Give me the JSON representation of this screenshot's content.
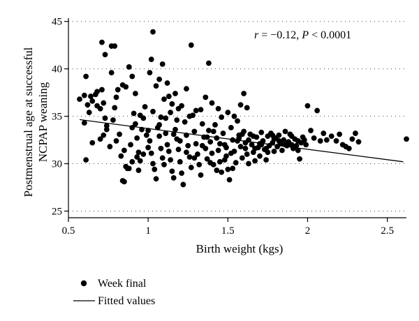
{
  "chart_data": {
    "type": "scatter",
    "title": "",
    "xlabel": "Birth weight (kgs)",
    "ylabel": [
      "Postmenstrual age at successful",
      "NCPAP weaning"
    ],
    "xlim": [
      0.5,
      2.62
    ],
    "ylim": [
      24.3,
      45.2
    ],
    "xticks": [
      0.5,
      1,
      1.5,
      2,
      2.5
    ],
    "xtick_labels": [
      "0.5",
      "1",
      "1.5",
      "2",
      "2.5"
    ],
    "yticks": [
      25,
      30,
      35,
      40,
      45
    ],
    "ytick_labels": [
      "25",
      "30",
      "35",
      "40",
      "45"
    ],
    "grid": "horizontal dotted",
    "annotation": {
      "r_label": "r",
      "r_value": " = −0.12, ",
      "p_label": "P",
      "p_value": " < 0.0001"
    },
    "legend": {
      "position": "bottom-left",
      "entries": [
        "Week final",
        "Fitted values"
      ]
    },
    "series": [
      {
        "name": "Week final",
        "kind": "points",
        "color": "#000000",
        "points": [
          [
            0.57,
            36.8
          ],
          [
            0.6,
            37.2
          ],
          [
            0.61,
            39.2
          ],
          [
            0.62,
            36.2
          ],
          [
            0.64,
            37.1
          ],
          [
            0.65,
            36.6
          ],
          [
            0.67,
            37.3
          ],
          [
            0.68,
            37.6
          ],
          [
            0.71,
            37.8
          ],
          [
            0.6,
            34.3
          ],
          [
            0.61,
            30.4
          ],
          [
            0.65,
            32.2
          ],
          [
            0.63,
            35.4
          ],
          [
            0.68,
            36.1
          ],
          [
            0.7,
            35.8
          ],
          [
            0.72,
            36.4
          ],
          [
            0.73,
            34.8
          ],
          [
            0.74,
            34.0
          ],
          [
            0.71,
            42.8
          ],
          [
            0.73,
            41.5
          ],
          [
            0.77,
            42.4
          ],
          [
            0.79,
            42.4
          ],
          [
            0.77,
            39.6
          ],
          [
            0.8,
            37.0
          ],
          [
            0.81,
            37.8
          ],
          [
            0.84,
            38.3
          ],
          [
            0.86,
            38.1
          ],
          [
            0.88,
            40.2
          ],
          [
            0.9,
            39.2
          ],
          [
            0.92,
            37.4
          ],
          [
            0.7,
            32.6
          ],
          [
            0.72,
            33.0
          ],
          [
            0.74,
            33.6
          ],
          [
            0.76,
            31.8
          ],
          [
            0.78,
            34.6
          ],
          [
            0.79,
            35.9
          ],
          [
            0.8,
            32.4
          ],
          [
            0.82,
            33.1
          ],
          [
            0.83,
            30.8
          ],
          [
            0.85,
            31.4
          ],
          [
            0.86,
            29.7
          ],
          [
            0.87,
            29.5
          ],
          [
            0.89,
            32.0
          ],
          [
            0.9,
            33.8
          ],
          [
            0.91,
            35.3
          ],
          [
            0.92,
            34.2
          ],
          [
            0.93,
            32.7
          ],
          [
            0.94,
            31.2
          ],
          [
            0.95,
            30.3
          ],
          [
            0.96,
            33.6
          ],
          [
            0.97,
            34.8
          ],
          [
            0.98,
            36.0
          ],
          [
            0.99,
            33.0
          ],
          [
            1.0,
            31.7
          ],
          [
            0.84,
            28.2
          ],
          [
            0.85,
            28.1
          ],
          [
            0.88,
            29.5
          ],
          [
            0.9,
            30.2
          ],
          [
            0.93,
            30.7
          ],
          [
            0.94,
            29.3
          ],
          [
            1.01,
            39.6
          ],
          [
            1.02,
            41.0
          ],
          [
            1.03,
            43.9
          ],
          [
            1.05,
            38.2
          ],
          [
            1.07,
            38.9
          ],
          [
            1.09,
            40.5
          ],
          [
            1.1,
            36.8
          ],
          [
            1.12,
            38.5
          ],
          [
            1.13,
            37.1
          ],
          [
            1.15,
            36.3
          ],
          [
            1.17,
            37.4
          ],
          [
            1.19,
            35.8
          ],
          [
            1.0,
            33.5
          ],
          [
            1.01,
            32.4
          ],
          [
            1.02,
            31.1
          ],
          [
            1.03,
            30.0
          ],
          [
            1.04,
            29.4
          ],
          [
            1.05,
            28.4
          ],
          [
            1.06,
            33.8
          ],
          [
            1.07,
            32.9
          ],
          [
            1.08,
            31.6
          ],
          [
            1.09,
            30.6
          ],
          [
            1.1,
            29.9
          ],
          [
            1.11,
            33.2
          ],
          [
            1.12,
            32.0
          ],
          [
            1.13,
            31.3
          ],
          [
            1.14,
            30.4
          ],
          [
            1.15,
            29.2
          ],
          [
            1.16,
            28.5
          ],
          [
            1.17,
            33.6
          ],
          [
            1.18,
            32.6
          ],
          [
            1.19,
            31.5
          ],
          [
            1.2,
            30.2
          ],
          [
            1.21,
            29.0
          ],
          [
            1.22,
            27.8
          ],
          [
            1.23,
            34.4
          ],
          [
            1.24,
            33.0
          ],
          [
            1.25,
            31.9
          ],
          [
            1.26,
            30.7
          ],
          [
            1.27,
            29.6
          ],
          [
            1.28,
            35.1
          ],
          [
            1.29,
            33.4
          ],
          [
            1.3,
            32.1
          ],
          [
            1.31,
            31.0
          ],
          [
            1.32,
            29.9
          ],
          [
            1.33,
            28.8
          ],
          [
            1.34,
            34.2
          ],
          [
            1.35,
            32.8
          ],
          [
            1.27,
            42.5
          ],
          [
            1.38,
            40.6
          ],
          [
            1.36,
            37.0
          ],
          [
            1.4,
            36.4
          ],
          [
            1.24,
            37.9
          ],
          [
            1.3,
            35.6
          ],
          [
            1.18,
            34.6
          ],
          [
            1.08,
            34.9
          ],
          [
            1.14,
            35.4
          ],
          [
            1.21,
            36.1
          ],
          [
            1.26,
            35.0
          ],
          [
            1.33,
            35.7
          ],
          [
            1.36,
            31.6
          ],
          [
            1.37,
            30.5
          ],
          [
            1.38,
            33.5
          ],
          [
            1.39,
            32.3
          ],
          [
            1.4,
            31.1
          ],
          [
            1.41,
            29.9
          ],
          [
            1.42,
            34.1
          ],
          [
            1.43,
            32.7
          ],
          [
            1.44,
            31.4
          ],
          [
            1.45,
            30.2
          ],
          [
            1.46,
            29.1
          ],
          [
            1.47,
            33.2
          ],
          [
            1.48,
            32.0
          ],
          [
            1.49,
            30.8
          ],
          [
            1.5,
            29.4
          ],
          [
            1.51,
            28.3
          ],
          [
            1.52,
            33.8
          ],
          [
            1.53,
            32.5
          ],
          [
            1.54,
            31.3
          ],
          [
            1.55,
            30.1
          ],
          [
            1.56,
            34.5
          ],
          [
            1.57,
            33.0
          ],
          [
            1.58,
            31.8
          ],
          [
            1.59,
            30.6
          ],
          [
            1.5,
            35.4
          ],
          [
            1.54,
            35.0
          ],
          [
            1.58,
            36.2
          ],
          [
            1.6,
            37.4
          ],
          [
            1.62,
            35.9
          ],
          [
            1.46,
            34.9
          ],
          [
            1.44,
            35.8
          ],
          [
            1.6,
            33.4
          ],
          [
            1.61,
            32.2
          ],
          [
            1.62,
            31.0
          ],
          [
            1.63,
            30.0
          ],
          [
            1.64,
            33.1
          ],
          [
            1.65,
            32.0
          ],
          [
            1.66,
            31.2
          ],
          [
            1.67,
            30.3
          ],
          [
            1.68,
            32.8
          ],
          [
            1.69,
            31.7
          ],
          [
            1.7,
            30.8
          ],
          [
            1.71,
            33.3
          ],
          [
            1.72,
            32.4
          ],
          [
            1.73,
            31.5
          ],
          [
            1.74,
            30.4
          ],
          [
            1.75,
            32.9
          ],
          [
            1.76,
            31.9
          ],
          [
            1.77,
            33.2
          ],
          [
            1.78,
            32.2
          ],
          [
            1.79,
            31.3
          ],
          [
            1.8,
            32.7
          ],
          [
            1.81,
            31.8
          ],
          [
            1.82,
            33.0
          ],
          [
            1.83,
            32.1
          ],
          [
            1.84,
            31.4
          ],
          [
            1.85,
            32.5
          ],
          [
            1.86,
            33.4
          ],
          [
            1.87,
            31.9
          ],
          [
            1.88,
            32.3
          ],
          [
            1.89,
            33.1
          ],
          [
            1.9,
            32.0
          ],
          [
            1.91,
            31.6
          ],
          [
            1.92,
            32.6
          ],
          [
            1.93,
            31.9
          ],
          [
            1.94,
            32.4
          ],
          [
            1.95,
            30.5
          ],
          [
            1.96,
            32.2
          ],
          [
            1.97,
            32.8
          ],
          [
            1.98,
            32.5
          ],
          [
            1.99,
            32.0
          ],
          [
            2.0,
            36.1
          ],
          [
            2.02,
            33.5
          ],
          [
            2.04,
            32.7
          ],
          [
            2.06,
            35.6
          ],
          [
            2.08,
            32.4
          ],
          [
            2.1,
            33.2
          ],
          [
            2.12,
            32.5
          ],
          [
            2.15,
            32.9
          ],
          [
            2.18,
            32.4
          ],
          [
            2.2,
            33.1
          ],
          [
            2.22,
            32.0
          ],
          [
            2.24,
            31.8
          ],
          [
            2.26,
            31.6
          ],
          [
            2.28,
            32.6
          ],
          [
            2.3,
            33.2
          ],
          [
            2.32,
            32.3
          ],
          [
            2.62,
            32.6
          ],
          [
            1.03,
            35.5
          ],
          [
            1.07,
            34.1
          ],
          [
            1.11,
            34.8
          ],
          [
            1.16,
            33.1
          ],
          [
            1.2,
            32.4
          ],
          [
            1.24,
            31.2
          ],
          [
            1.29,
            30.6
          ],
          [
            1.34,
            31.9
          ],
          [
            1.39,
            30.1
          ],
          [
            1.43,
            29.3
          ],
          [
            1.48,
            30.4
          ],
          [
            1.53,
            29.5
          ],
          [
            1.57,
            32.7
          ],
          [
            1.61,
            31.6
          ],
          [
            1.66,
            32.9
          ],
          [
            1.7,
            32.1
          ],
          [
            1.74,
            31.6
          ],
          [
            1.78,
            33.0
          ],
          [
            1.82,
            32.4
          ],
          [
            1.86,
            32.0
          ],
          [
            1.9,
            32.9
          ],
          [
            1.94,
            31.4
          ],
          [
            0.97,
            31.0
          ],
          [
            0.95,
            35.1
          ],
          [
            1.37,
            32.8
          ],
          [
            1.41,
            33.4
          ],
          [
            1.45,
            32.1
          ],
          [
            1.49,
            31.7
          ],
          [
            1.52,
            31.1
          ],
          [
            1.56,
            32.4
          ],
          [
            1.59,
            33.1
          ],
          [
            1.63,
            32.5
          ],
          [
            1.67,
            31.6
          ],
          [
            1.71,
            32.0
          ],
          [
            1.75,
            31.2
          ],
          [
            1.79,
            32.6
          ]
        ]
      },
      {
        "name": "Fitted values",
        "kind": "line",
        "color": "#000000",
        "points": [
          [
            0.57,
            34.65
          ],
          [
            2.6,
            30.2
          ]
        ]
      }
    ]
  }
}
